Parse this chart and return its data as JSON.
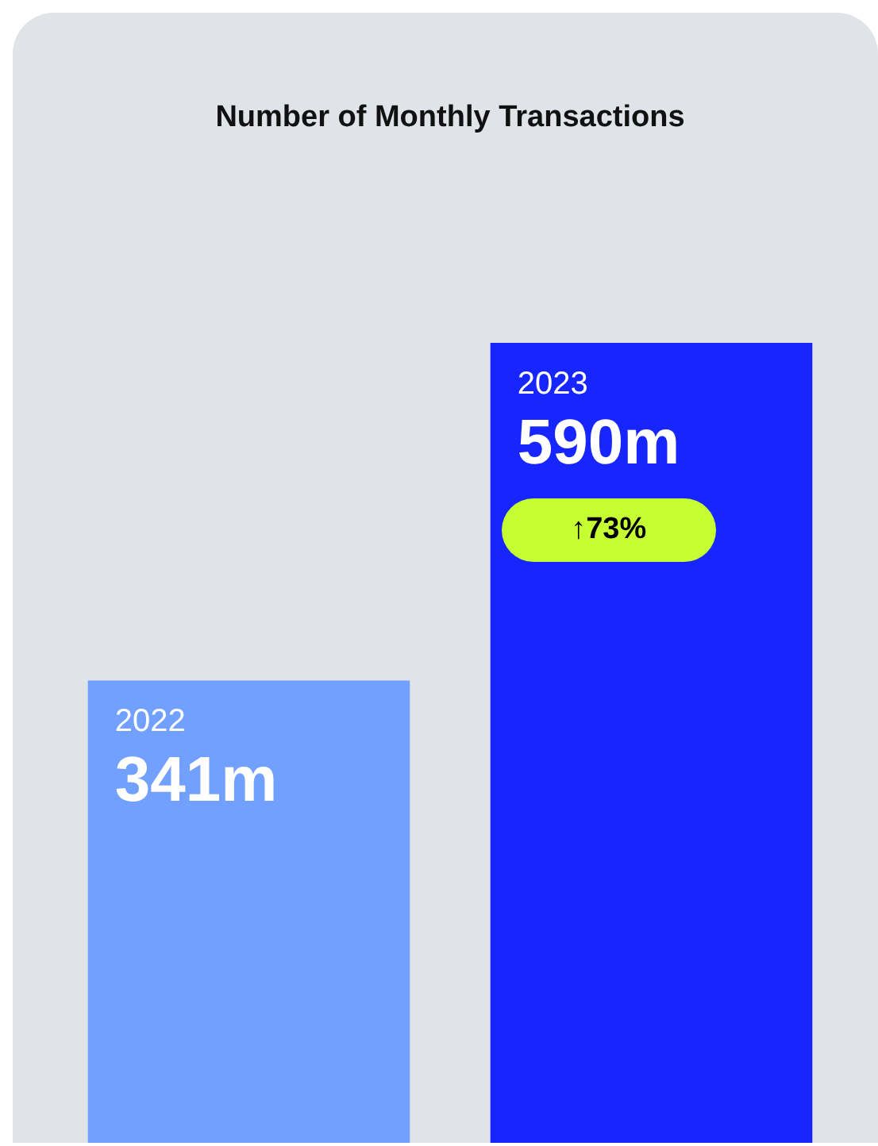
{
  "chart_data": {
    "type": "bar",
    "title": "Number of Monthly Transactions",
    "categories": [
      "2022",
      "2023"
    ],
    "values": [
      341,
      590
    ],
    "colors": [
      "#71a0ff",
      "#1726ff"
    ],
    "value_labels": [
      "341m",
      "590m"
    ],
    "annotations": [
      "↑73%"
    ],
    "tick_labels": false
  }
}
